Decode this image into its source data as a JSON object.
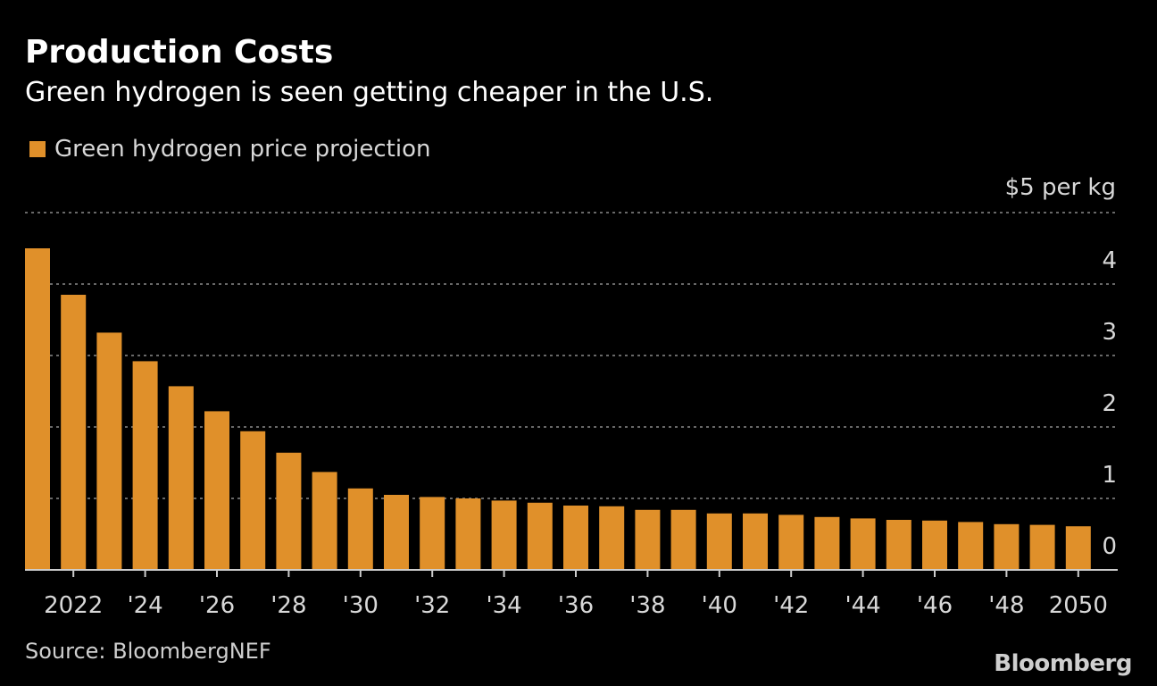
{
  "chart_data": {
    "type": "bar",
    "title": "Production Costs",
    "subtitle": "Green hydrogen is seen getting cheaper in the U.S.",
    "legend": "Green hydrogen price projection",
    "unit_label": "$5 per kg",
    "source": "Source: BloombergNEF",
    "brand": "Bloomberg",
    "bar_color": "#e0902a",
    "ylim": [
      0,
      5
    ],
    "yticks": [
      {
        "value": 0,
        "label": "0"
      },
      {
        "value": 1,
        "label": "1"
      },
      {
        "value": 2,
        "label": "2"
      },
      {
        "value": 3,
        "label": "3"
      },
      {
        "value": 4,
        "label": "4"
      }
    ],
    "categories": [
      2021,
      2022,
      2023,
      2024,
      2025,
      2026,
      2027,
      2028,
      2029,
      2030,
      2031,
      2032,
      2033,
      2034,
      2035,
      2036,
      2037,
      2038,
      2039,
      2040,
      2041,
      2042,
      2043,
      2044,
      2045,
      2046,
      2047,
      2048,
      2049,
      2050
    ],
    "values": [
      4.5,
      3.85,
      3.32,
      2.92,
      2.57,
      2.22,
      1.94,
      1.64,
      1.37,
      1.14,
      1.05,
      1.02,
      1.0,
      0.97,
      0.94,
      0.9,
      0.89,
      0.84,
      0.84,
      0.79,
      0.79,
      0.77,
      0.74,
      0.72,
      0.7,
      0.69,
      0.67,
      0.64,
      0.63,
      0.61
    ],
    "xtick_labels": [
      {
        "year": 2022,
        "label": "2022"
      },
      {
        "year": 2024,
        "label": "'24"
      },
      {
        "year": 2026,
        "label": "'26"
      },
      {
        "year": 2028,
        "label": "'28"
      },
      {
        "year": 2030,
        "label": "'30"
      },
      {
        "year": 2032,
        "label": "'32"
      },
      {
        "year": 2034,
        "label": "'34"
      },
      {
        "year": 2036,
        "label": "'36"
      },
      {
        "year": 2038,
        "label": "'38"
      },
      {
        "year": 2040,
        "label": "'40"
      },
      {
        "year": 2042,
        "label": "'42"
      },
      {
        "year": 2044,
        "label": "'44"
      },
      {
        "year": 2046,
        "label": "'46"
      },
      {
        "year": 2048,
        "label": "'48"
      },
      {
        "year": 2050,
        "label": "2050"
      }
    ]
  }
}
